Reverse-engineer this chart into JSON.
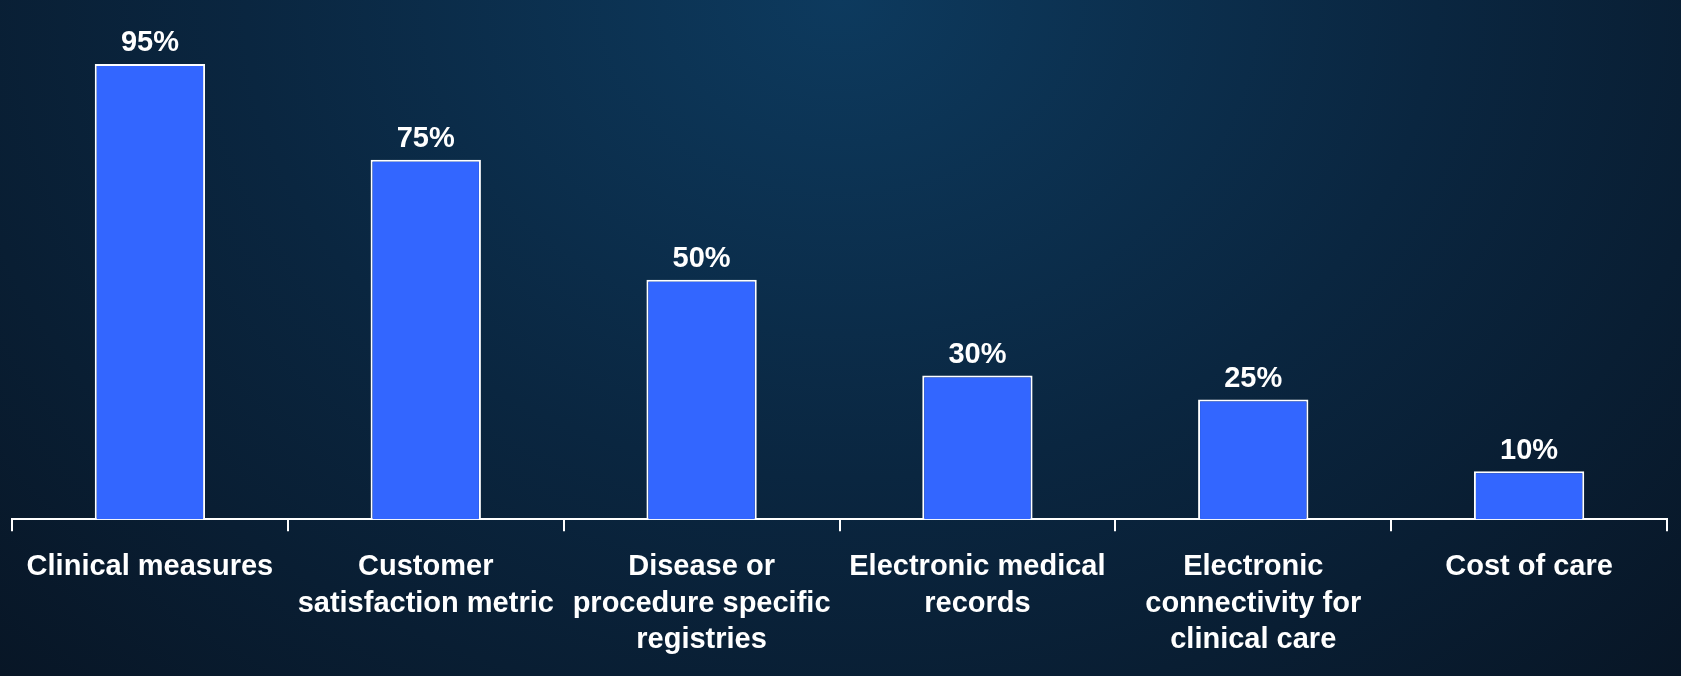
{
  "chart_data": {
    "type": "bar",
    "categories": [
      "Clinical measures",
      "Customer satisfaction metric",
      "Disease or procedure specific registries",
      "Electronic medical records",
      "Electronic connectivity for clinical care",
      "Cost of care"
    ],
    "values": [
      95,
      75,
      50,
      30,
      25,
      10
    ],
    "value_labels": [
      "95%",
      "75%",
      "50%",
      "30%",
      "25%",
      "10%"
    ],
    "color": "#3366ff",
    "grid": false,
    "legend": false,
    "tick_labels": "x"
  }
}
